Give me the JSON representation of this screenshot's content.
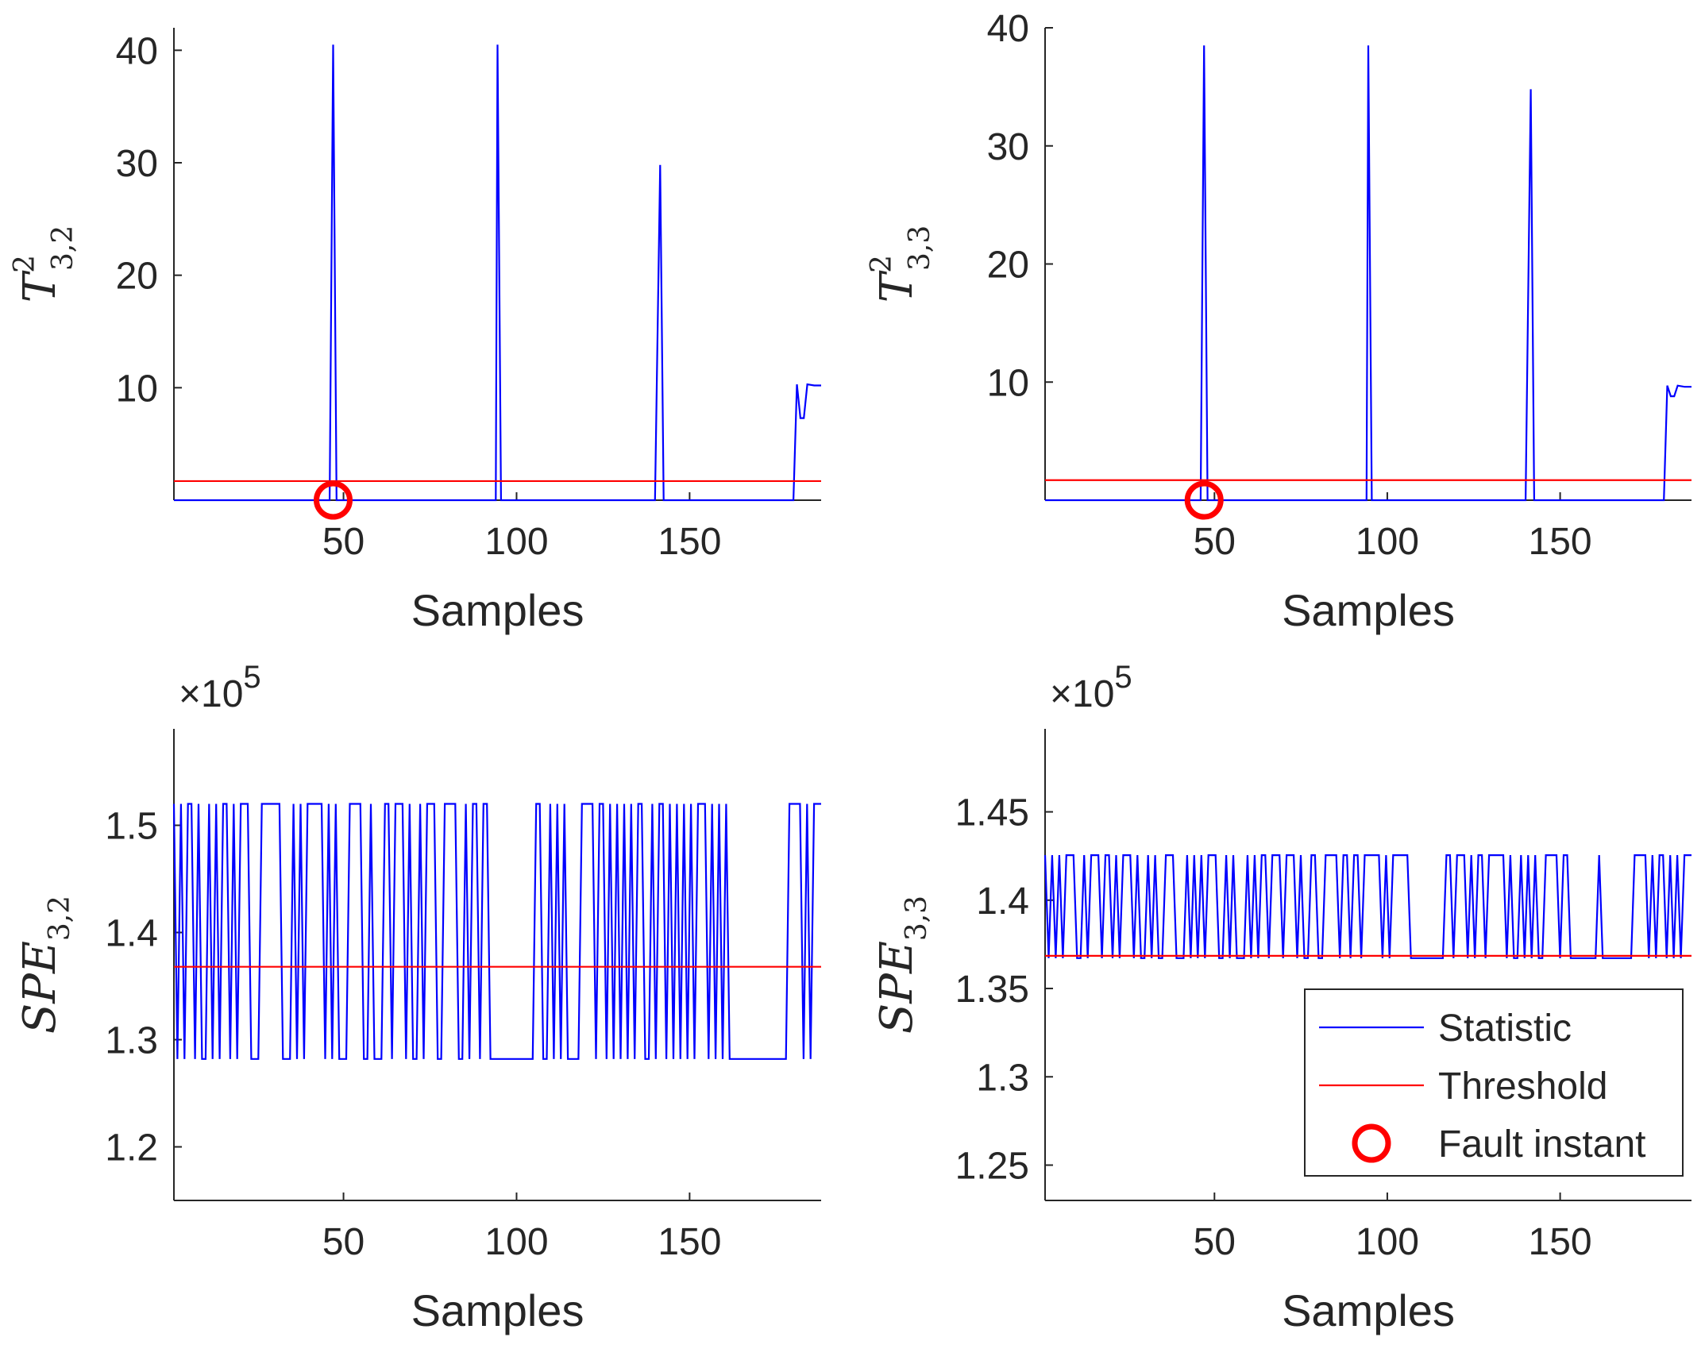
{
  "chart_data": [
    {
      "id": "p1",
      "type": "line",
      "ylabel": {
        "base": "T",
        "sup": "2",
        "sub": "3,2"
      },
      "xlabel": "Samples",
      "xlim": [
        1,
        188
      ],
      "ylim": [
        0,
        42
      ],
      "xticks": [
        50,
        100,
        150
      ],
      "yticks": [
        10,
        20,
        30,
        40
      ],
      "exponent": "",
      "threshold": 1.7,
      "fault_instant": {
        "x": 47,
        "y": 0
      },
      "series": [
        {
          "name": "Statistic",
          "color": "#0000ff",
          "points": [
            [
              1,
              0
            ],
            [
              45,
              0
            ],
            [
              46,
              0
            ],
            [
              47,
              40.5
            ],
            [
              48,
              0
            ],
            [
              94,
              0
            ],
            [
              94.5,
              40.5
            ],
            [
              95.5,
              0
            ],
            [
              140,
              0
            ],
            [
              141.5,
              29.8
            ],
            [
              142.5,
              0
            ],
            [
              180,
              0
            ],
            [
              181,
              10.3
            ],
            [
              182,
              7.3
            ],
            [
              183,
              7.3
            ],
            [
              184,
              10.3
            ],
            [
              186,
              10.2
            ],
            [
              188,
              10.2
            ]
          ]
        },
        {
          "name": "Threshold",
          "color": "#ff0000",
          "points": [
            [
              1,
              1.7
            ],
            [
              188,
              1.7
            ]
          ]
        }
      ]
    },
    {
      "id": "p2",
      "type": "line",
      "ylabel": {
        "base": "T",
        "sup": "2",
        "sub": "3,3"
      },
      "xlabel": "Samples",
      "xlim": [
        1,
        188
      ],
      "ylim": [
        0,
        40
      ],
      "xticks": [
        50,
        100,
        150
      ],
      "yticks": [
        10,
        20,
        30,
        40
      ],
      "exponent": "",
      "threshold": 1.7,
      "fault_instant": {
        "x": 47,
        "y": 0
      },
      "series": [
        {
          "name": "Statistic",
          "color": "#0000ff",
          "points": [
            [
              1,
              0
            ],
            [
              45,
              0
            ],
            [
              46,
              0
            ],
            [
              47,
              38.5
            ],
            [
              48,
              0
            ],
            [
              94,
              0
            ],
            [
              94.5,
              38.5
            ],
            [
              95.5,
              0
            ],
            [
              140,
              0
            ],
            [
              141.5,
              34.8
            ],
            [
              142.5,
              0
            ],
            [
              180,
              0
            ],
            [
              181,
              9.7
            ],
            [
              182,
              8.8
            ],
            [
              183,
              8.8
            ],
            [
              184,
              9.7
            ],
            [
              186,
              9.6
            ],
            [
              188,
              9.6
            ]
          ]
        },
        {
          "name": "Threshold",
          "color": "#ff0000",
          "points": [
            [
              1,
              1.7
            ],
            [
              188,
              1.7
            ]
          ]
        }
      ]
    },
    {
      "id": "p3",
      "type": "line",
      "ylabel": {
        "base": "SPE",
        "sup": "",
        "sub": "3,2"
      },
      "xlabel": "Samples",
      "xlim": [
        1,
        188
      ],
      "ylim": [
        1.15,
        1.59
      ],
      "xticks": [
        50,
        100,
        150
      ],
      "yticks": [
        1.2,
        1.3,
        1.4,
        1.5
      ],
      "ytick_labels": [
        "1.2",
        "1.3",
        "1.4",
        "1.5"
      ],
      "exponent": "×10",
      "exponent_power": "5",
      "threshold": 1.368,
      "fault_instant": null,
      "low": 1.282,
      "high": 1.52,
      "pattern": "HLHLHHLHLLHLHLHHLHLHHHLLLHHHHHHLLLHLHLHHHHHLHLHLLLHHHHLLHLLLHHLHHHLHLLHLHHHLLHHHHLLHLHHLHHLLLLLLLLLLLLLHHLLHLHLHLLLLHHHHLHHLHLHLHLHLHHLLHLHHLHLHLHLHLHHHLHLHLHLLLLLLLLLLLLLLLLLHHHHLHLHHH",
      "series": [
        {
          "name": "Statistic",
          "color": "#0000ff"
        },
        {
          "name": "Threshold",
          "color": "#ff0000"
        }
      ]
    },
    {
      "id": "p4",
      "type": "line",
      "ylabel": {
        "base": "SPE",
        "sup": "",
        "sub": "3,3"
      },
      "xlabel": "Samples",
      "xlim": [
        1,
        188
      ],
      "ylim": [
        1.23,
        1.497
      ],
      "xticks": [
        50,
        100,
        150
      ],
      "yticks": [
        1.25,
        1.3,
        1.35,
        1.4,
        1.45
      ],
      "ytick_labels": [
        "1.25",
        "1.3",
        "1.35",
        "1.4",
        "1.45"
      ],
      "exponent": "×10",
      "exponent_power": "5",
      "threshold": 1.3685,
      "fault_instant": null,
      "low": 1.3672,
      "high": 1.4255,
      "pattern": "HLHLHLHHHLLHLHHHLHHLHLHHHLHLLHLHLLHHHLLLHLHLHLHHHLLHLHLLLHLHLHHLHHHLHHHLHLLHHLLHHHHLHHLHHLHHHHHLHLHHHHHLLLLLLLLLLHHLHHHLHLHHLHHHHHLHLLHLHLHLLHHHHLHHLLLLLLLLHLLLLLLLLLHHHHLHLHHLHLHLHHH",
      "series": [
        {
          "name": "Statistic",
          "color": "#0000ff"
        },
        {
          "name": "Threshold",
          "color": "#ff0000"
        }
      ],
      "legend": {
        "location": "bottom-right",
        "entries": [
          "Statistic",
          "Threshold",
          "Fault instant"
        ]
      }
    }
  ]
}
